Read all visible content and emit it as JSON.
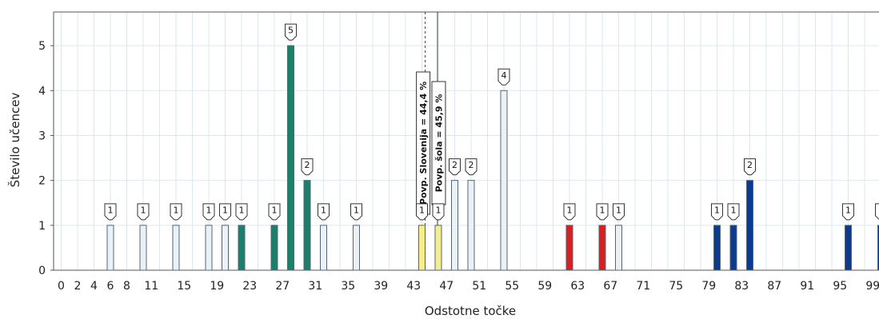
{
  "chart_data": {
    "type": "bar",
    "title": "",
    "xlabel": "Odstotne točke",
    "ylabel": "Število učencev",
    "xlim": [
      0,
      100
    ],
    "ylim": [
      0,
      5.75
    ],
    "x_ticks": [
      "0",
      "2",
      "4",
      "6",
      "8",
      "11",
      "15",
      "19",
      "23",
      "27",
      "31",
      "35",
      "39",
      "43",
      "47",
      "51",
      "55",
      "59",
      "63",
      "67",
      "71",
      "75",
      "79",
      "83",
      "87",
      "91",
      "95",
      "99"
    ],
    "y_ticks": [
      0,
      1,
      2,
      3,
      4,
      5
    ],
    "grid": true,
    "bars": [
      {
        "x": 6,
        "value": 1,
        "color": "#eaf2f8"
      },
      {
        "x": 10,
        "value": 1,
        "color": "#eaf2f8"
      },
      {
        "x": 14,
        "value": 1,
        "color": "#eaf2f8"
      },
      {
        "x": 18,
        "value": 1,
        "color": "#eaf2f8"
      },
      {
        "x": 20,
        "value": 1,
        "color": "#eaf2f8"
      },
      {
        "x": 22,
        "value": 1,
        "color": "#1b7f6a"
      },
      {
        "x": 26,
        "value": 1,
        "color": "#1b7f6a"
      },
      {
        "x": 28,
        "value": 5,
        "color": "#1b7f6a"
      },
      {
        "x": 30,
        "value": 2,
        "color": "#1b7f6a"
      },
      {
        "x": 32,
        "value": 1,
        "color": "#eaf2f8"
      },
      {
        "x": 36,
        "value": 1,
        "color": "#eaf2f8"
      },
      {
        "x": 44,
        "value": 1,
        "color": "#f5ee8f"
      },
      {
        "x": 46,
        "value": 1,
        "color": "#f5ee8f"
      },
      {
        "x": 48,
        "value": 2,
        "color": "#eaf2f8"
      },
      {
        "x": 50,
        "value": 2,
        "color": "#eaf2f8"
      },
      {
        "x": 54,
        "value": 4,
        "color": "#eaf2f8"
      },
      {
        "x": 62,
        "value": 1,
        "color": "#d42020"
      },
      {
        "x": 66,
        "value": 1,
        "color": "#d42020"
      },
      {
        "x": 68,
        "value": 1,
        "color": "#eaf2f8"
      },
      {
        "x": 80,
        "value": 1,
        "color": "#0d3b8c"
      },
      {
        "x": 82,
        "value": 1,
        "color": "#0d3b8c"
      },
      {
        "x": 84,
        "value": 2,
        "color": "#0d3b8c"
      },
      {
        "x": 96,
        "value": 1,
        "color": "#0d3b8c"
      },
      {
        "x": 100,
        "value": 1,
        "color": "#0d3b8c"
      }
    ],
    "reference_lines": [
      {
        "x": 44.4,
        "label": "Povp. Slovenija = 44,4 %",
        "style": "dashed"
      },
      {
        "x": 45.9,
        "label": "Povp. šola = 45,9 %",
        "style": "solid"
      }
    ]
  }
}
